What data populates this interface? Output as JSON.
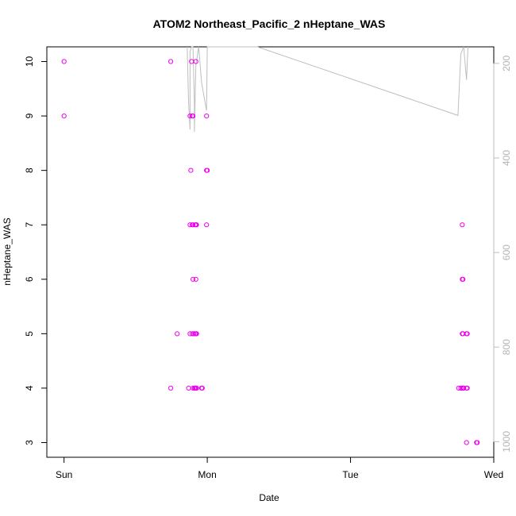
{
  "chart_data": {
    "type": "scatter",
    "title": "ATOM2 Northeast_Pacific_2 nHeptane_WAS",
    "xlabel": "Date",
    "ylabel": "nHeptane_WAS",
    "x_ticks": [
      {
        "value": 0.0,
        "label": "Sun"
      },
      {
        "value": 1.0,
        "label": "Mon"
      },
      {
        "value": 2.0,
        "label": "Tue"
      },
      {
        "value": 3.0,
        "label": "Wed"
      }
    ],
    "xlim": [
      -0.12,
      3.0
    ],
    "ylim": [
      2.73,
      10.27
    ],
    "y_ticks": [
      3,
      4,
      5,
      6,
      7,
      8,
      9,
      10
    ],
    "secondary_axis": {
      "side": "right",
      "reversed": true,
      "ticks": [
        200,
        400,
        600,
        800,
        1000
      ],
      "ylim": [
        1033,
        165
      ],
      "color": "#bebebe"
    },
    "series": [
      {
        "marker": "open-circle",
        "color": "#ee00ee",
        "points": [
          [
            0.0,
            10
          ],
          [
            0.0,
            9
          ],
          [
            0.745,
            10
          ],
          [
            0.745,
            4
          ],
          [
            0.79,
            5
          ],
          [
            0.87,
            4
          ],
          [
            0.88,
            9
          ],
          [
            0.88,
            7
          ],
          [
            0.88,
            5
          ],
          [
            0.885,
            8
          ],
          [
            0.89,
            10
          ],
          [
            0.895,
            9
          ],
          [
            0.895,
            7
          ],
          [
            0.895,
            5
          ],
          [
            0.9,
            9
          ],
          [
            0.9,
            7
          ],
          [
            0.9,
            6
          ],
          [
            0.9,
            4
          ],
          [
            0.905,
            5
          ],
          [
            0.91,
            4
          ],
          [
            0.915,
            7
          ],
          [
            0.915,
            5
          ],
          [
            0.915,
            4
          ],
          [
            0.92,
            10
          ],
          [
            0.92,
            7
          ],
          [
            0.92,
            6
          ],
          [
            0.92,
            5
          ],
          [
            0.92,
            4
          ],
          [
            0.925,
            7
          ],
          [
            0.925,
            5
          ],
          [
            0.925,
            4
          ],
          [
            0.96,
            4
          ],
          [
            0.965,
            4
          ],
          [
            0.995,
            9
          ],
          [
            0.995,
            8
          ],
          [
            0.995,
            7
          ],
          [
            1.0,
            8
          ],
          [
            2.755,
            4
          ],
          [
            2.77,
            4
          ],
          [
            2.78,
            7
          ],
          [
            2.78,
            6
          ],
          [
            2.78,
            5
          ],
          [
            2.78,
            4
          ],
          [
            2.785,
            6
          ],
          [
            2.785,
            5
          ],
          [
            2.785,
            4
          ],
          [
            2.79,
            4
          ],
          [
            2.81,
            5
          ],
          [
            2.81,
            4
          ],
          [
            2.81,
            3
          ],
          [
            2.815,
            5
          ],
          [
            2.815,
            4
          ],
          [
            2.88,
            3
          ],
          [
            2.885,
            3
          ]
        ]
      },
      {
        "name": "",
        "type": "line",
        "axis": "secondary",
        "color": "#bebebe",
        "points": [
          [
            0.86,
            165
          ],
          [
            0.87,
            285
          ],
          [
            0.88,
            340
          ],
          [
            0.88,
            175
          ],
          [
            0.89,
            165
          ],
          [
            0.9,
            165
          ],
          [
            0.91,
            285
          ],
          [
            0.91,
            345
          ],
          [
            0.92,
            205
          ],
          [
            0.94,
            165
          ],
          [
            0.96,
            240
          ],
          [
            0.98,
            275
          ],
          [
            0.995,
            300
          ],
          [
            1.0,
            165
          ],
          [
            1.35,
            165
          ],
          [
            2.75,
            310
          ],
          [
            2.77,
            180
          ],
          [
            2.79,
            160
          ],
          [
            2.81,
            235
          ],
          [
            2.82,
            165
          ]
        ]
      }
    ]
  }
}
